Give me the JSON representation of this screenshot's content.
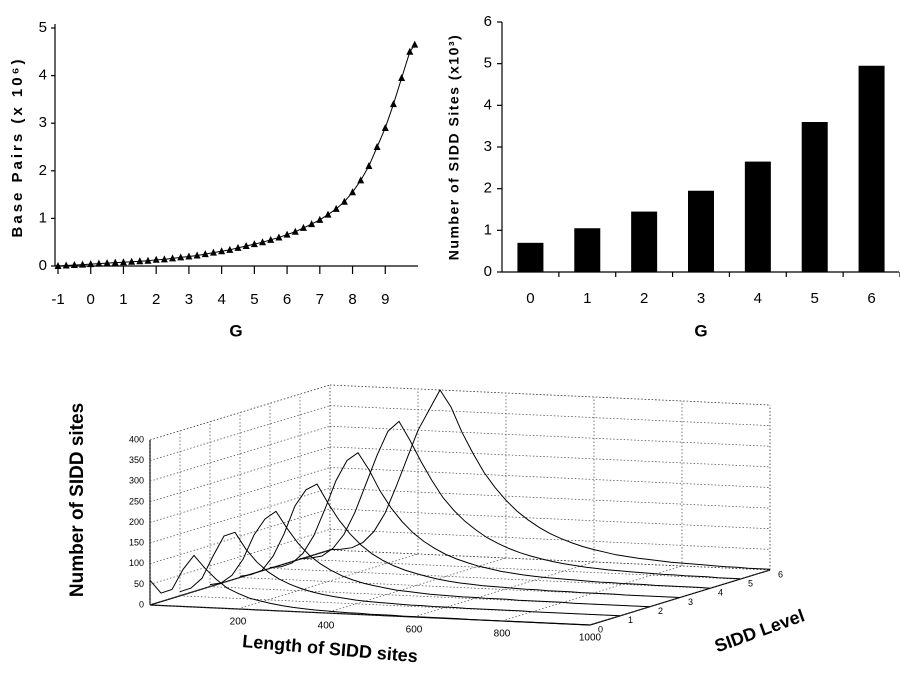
{
  "chart_data": [
    {
      "type": "line",
      "y_label": "Base Pairs (x 10⁶)",
      "x_label": "G",
      "marker": "triangle",
      "color": "#000000",
      "x": [
        -1,
        -0.75,
        -0.5,
        -0.25,
        0,
        0.25,
        0.5,
        0.75,
        1,
        1.25,
        1.5,
        1.75,
        2,
        2.25,
        2.5,
        2.75,
        3,
        3.25,
        3.5,
        3.75,
        4,
        4.25,
        4.5,
        4.75,
        5,
        5.25,
        5.5,
        5.75,
        6,
        6.25,
        6.5,
        6.75,
        7,
        7.25,
        7.5,
        7.75,
        8,
        8.25,
        8.5,
        8.75,
        9,
        9.25,
        9.5,
        9.75,
        9.9
      ],
      "values": [
        0,
        0.01,
        0.02,
        0.03,
        0.04,
        0.05,
        0.06,
        0.07,
        0.08,
        0.09,
        0.1,
        0.11,
        0.13,
        0.14,
        0.16,
        0.18,
        0.2,
        0.22,
        0.25,
        0.28,
        0.31,
        0.34,
        0.38,
        0.42,
        0.46,
        0.5,
        0.55,
        0.6,
        0.66,
        0.72,
        0.8,
        0.88,
        0.97,
        1.08,
        1.2,
        1.35,
        1.55,
        1.8,
        2.1,
        2.5,
        2.9,
        3.4,
        3.95,
        4.5,
        4.65
      ],
      "xlim": [
        -1,
        10
      ],
      "ylim": [
        0,
        5
      ],
      "xticks": [
        -1,
        0,
        1,
        2,
        3,
        4,
        5,
        6,
        7,
        8,
        9
      ],
      "yticks": [
        0,
        1,
        2,
        3,
        4,
        5
      ]
    },
    {
      "type": "bar",
      "y_label": "Number of SIDD Sites (x10³)",
      "x_label": "G",
      "color": "#000000",
      "categories": [
        "0",
        "1",
        "2",
        "3",
        "4",
        "5",
        "6"
      ],
      "values": [
        0.7,
        1.05,
        1.45,
        1.95,
        2.65,
        3.6,
        4.95
      ],
      "ylim": [
        0,
        6
      ],
      "yticks": [
        0,
        1,
        2,
        3,
        4,
        5,
        6
      ]
    },
    {
      "type": "line3d",
      "z_label": "Number of SIDD sites",
      "x_label": "Length of SIDD sites",
      "y_label": "SIDD Level",
      "color": "#000000",
      "x": [
        0,
        25,
        50,
        75,
        100,
        125,
        150,
        175,
        200,
        225,
        250,
        275,
        300,
        325,
        350,
        375,
        400,
        425,
        450,
        475,
        500,
        525,
        550,
        575,
        600,
        625,
        650,
        675,
        700,
        725,
        750,
        775,
        800,
        825,
        850,
        875,
        900,
        925,
        950,
        975,
        1000
      ],
      "xlim": [
        0,
        1000
      ],
      "xticks": [
        200,
        400,
        600,
        800,
        1000
      ],
      "ylim": [
        0,
        6
      ],
      "yticks": [
        0,
        1,
        2,
        3,
        4,
        5,
        6
      ],
      "zlim": [
        0,
        400
      ],
      "zticks": [
        0,
        50,
        100,
        150,
        200,
        250,
        300,
        350,
        400
      ],
      "series": [
        {
          "level": 0,
          "values": [
            60,
            30,
            40,
            90,
            125,
            95,
            70,
            50,
            38,
            28,
            22,
            17,
            13,
            10,
            8,
            6,
            5,
            4,
            3,
            3,
            2,
            2,
            2,
            1,
            1,
            1,
            1,
            1,
            1,
            0,
            0,
            0,
            0,
            0,
            0,
            0,
            0,
            0,
            0,
            0,
            0
          ]
        },
        {
          "level": 1,
          "values": [
            10,
            20,
            45,
            100,
            150,
            160,
            120,
            90,
            68,
            52,
            40,
            31,
            24,
            19,
            15,
            12,
            9,
            7,
            6,
            5,
            4,
            3,
            3,
            2,
            2,
            2,
            1,
            1,
            1,
            1,
            1,
            1,
            0,
            0,
            0,
            0,
            0,
            0,
            0,
            0,
            0
          ]
        },
        {
          "level": 2,
          "values": [
            5,
            10,
            30,
            70,
            130,
            170,
            190,
            150,
            115,
            88,
            68,
            53,
            41,
            32,
            25,
            20,
            16,
            12,
            10,
            8,
            6,
            5,
            4,
            3,
            3,
            2,
            2,
            2,
            1,
            1,
            1,
            1,
            1,
            0,
            0,
            0,
            0,
            0,
            0,
            0,
            0
          ]
        },
        {
          "level": 3,
          "values": [
            3,
            8,
            20,
            55,
            110,
            180,
            220,
            235,
            190,
            150,
            118,
            92,
            72,
            57,
            45,
            36,
            29,
            23,
            18,
            14,
            11,
            9,
            7,
            6,
            5,
            4,
            3,
            3,
            2,
            2,
            2,
            1,
            1,
            1,
            1,
            0,
            0,
            0,
            0,
            0,
            0
          ]
        },
        {
          "level": 4,
          "values": [
            2,
            5,
            15,
            40,
            85,
            150,
            220,
            270,
            290,
            250,
            200,
            160,
            128,
            102,
            82,
            66,
            53,
            43,
            35,
            28,
            23,
            18,
            15,
            12,
            10,
            8,
            7,
            6,
            5,
            4,
            3,
            3,
            2,
            2,
            2,
            1,
            1,
            1,
            1,
            1,
            0
          ]
        },
        {
          "level": 5,
          "values": [
            1,
            4,
            10,
            30,
            65,
            120,
            190,
            260,
            320,
            345,
            300,
            250,
            205,
            165,
            135,
            110,
            90,
            73,
            60,
            49,
            40,
            33,
            27,
            22,
            18,
            15,
            12,
            10,
            8,
            7,
            6,
            5,
            4,
            3,
            3,
            2,
            2,
            2,
            1,
            1,
            1
          ]
        },
        {
          "level": 6,
          "values": [
            1,
            3,
            8,
            22,
            50,
            95,
            160,
            230,
            300,
            350,
            400,
            360,
            300,
            250,
            205,
            170,
            140,
            115,
            95,
            78,
            64,
            53,
            44,
            36,
            30,
            25,
            20,
            17,
            14,
            12,
            10,
            8,
            7,
            6,
            5,
            4,
            3,
            3,
            2,
            2,
            2
          ]
        }
      ]
    }
  ]
}
